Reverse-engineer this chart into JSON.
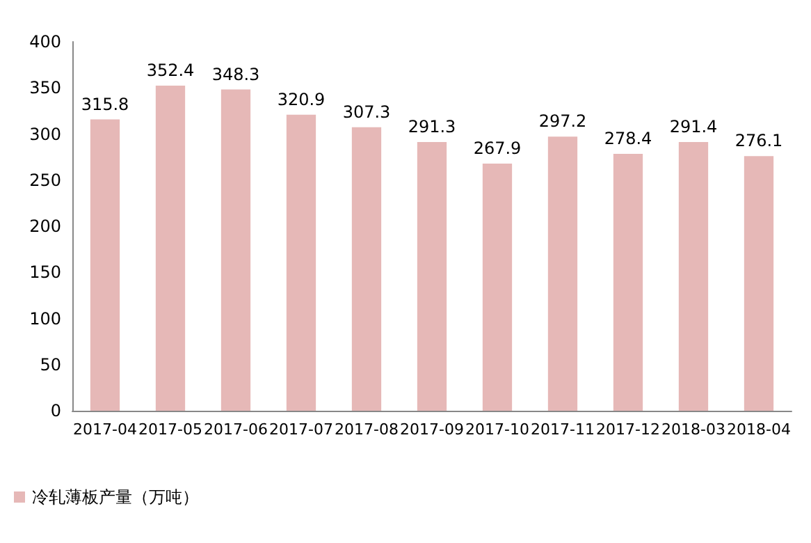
{
  "chart_data": {
    "type": "bar",
    "categories": [
      "2017-04",
      "2017-05",
      "2017-06",
      "2017-07",
      "2017-08",
      "2017-09",
      "2017-10",
      "2017-11",
      "2017-12",
      "2018-03",
      "2018-04"
    ],
    "series": [
      {
        "name": "冷轧薄板产量（万吨）",
        "color": "#e6b8b7",
        "values": [
          315.8,
          352.4,
          348.3,
          320.9,
          307.3,
          291.3,
          267.9,
          297.2,
          278.4,
          291.4,
          276.1
        ]
      }
    ],
    "ylim": [
      0,
      400
    ],
    "yticks": [
      0,
      50,
      100,
      150,
      200,
      250,
      300,
      350,
      400
    ],
    "grid": false,
    "legend": "bottom left",
    "data_labels": true
  }
}
